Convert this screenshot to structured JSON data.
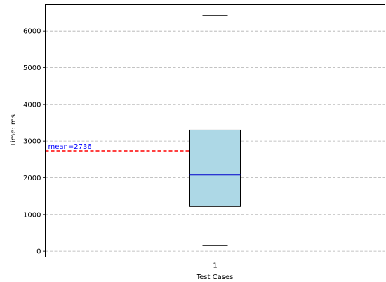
{
  "chart_data": {
    "type": "box",
    "xlabel": "Test Cases",
    "ylabel": "Time: ms",
    "categories": [
      "1"
    ],
    "ylim": [
      -160,
      6720
    ],
    "yticks": [
      0,
      1000,
      2000,
      3000,
      4000,
      5000,
      6000
    ],
    "grid": "y-dashed",
    "boxes": [
      {
        "category": "1",
        "whisker_low": 160,
        "q1": 1220,
        "median": 2080,
        "q3": 3300,
        "whisker_high": 6420,
        "fill": "#add8e6",
        "median_color": "#0000cc"
      }
    ],
    "mean": {
      "value": 2736,
      "label": "mean=2736",
      "color": "#ff0000",
      "label_color": "#0000ff"
    }
  }
}
